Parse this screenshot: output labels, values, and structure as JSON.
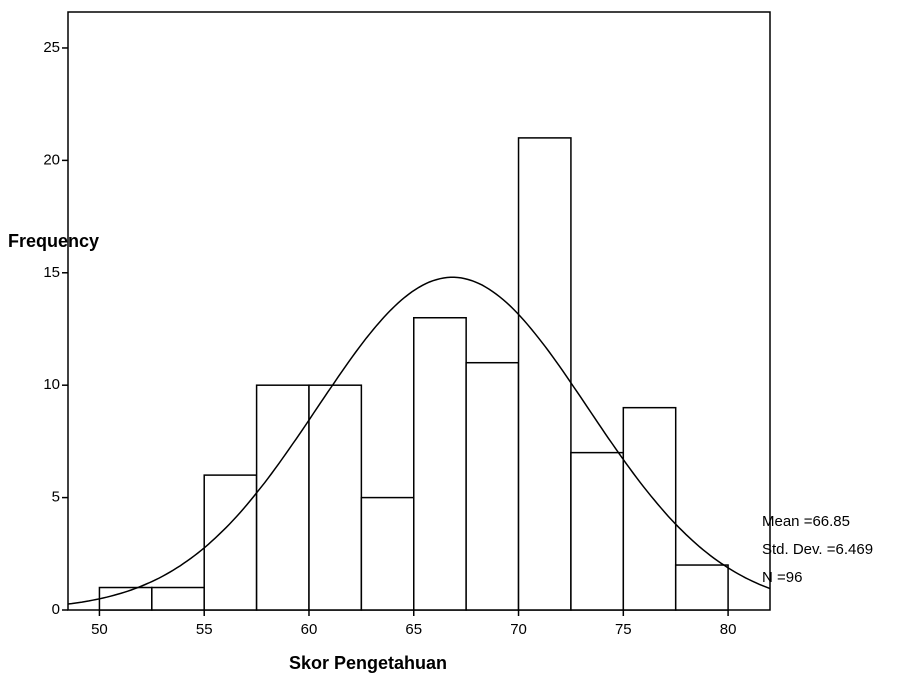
{
  "chart_data": {
    "type": "histogram",
    "x_label": "Skor Pengetahuan",
    "y_label": "Frequency",
    "bins": [
      50,
      52.5,
      55,
      57.5,
      60,
      62.5,
      65,
      67.5,
      70,
      72.5,
      75,
      77.5,
      80
    ],
    "values": [
      1,
      1,
      6,
      10,
      10,
      5,
      13,
      11,
      21,
      7,
      9,
      2
    ],
    "color": "#ffffff",
    "xlim": [
      48.5,
      82
    ],
    "xticks": [
      50,
      55,
      60,
      65,
      70,
      75,
      80
    ],
    "ylim": [
      0,
      26.6
    ],
    "yticks": [
      0,
      5,
      10,
      15,
      20,
      25
    ],
    "normal_curve": {
      "mean": 66.85,
      "sd": 6.469,
      "n": 96
    },
    "annotations": [
      "Mean =66.85",
      "Std. Dev. =6.469",
      "N =96"
    ]
  }
}
